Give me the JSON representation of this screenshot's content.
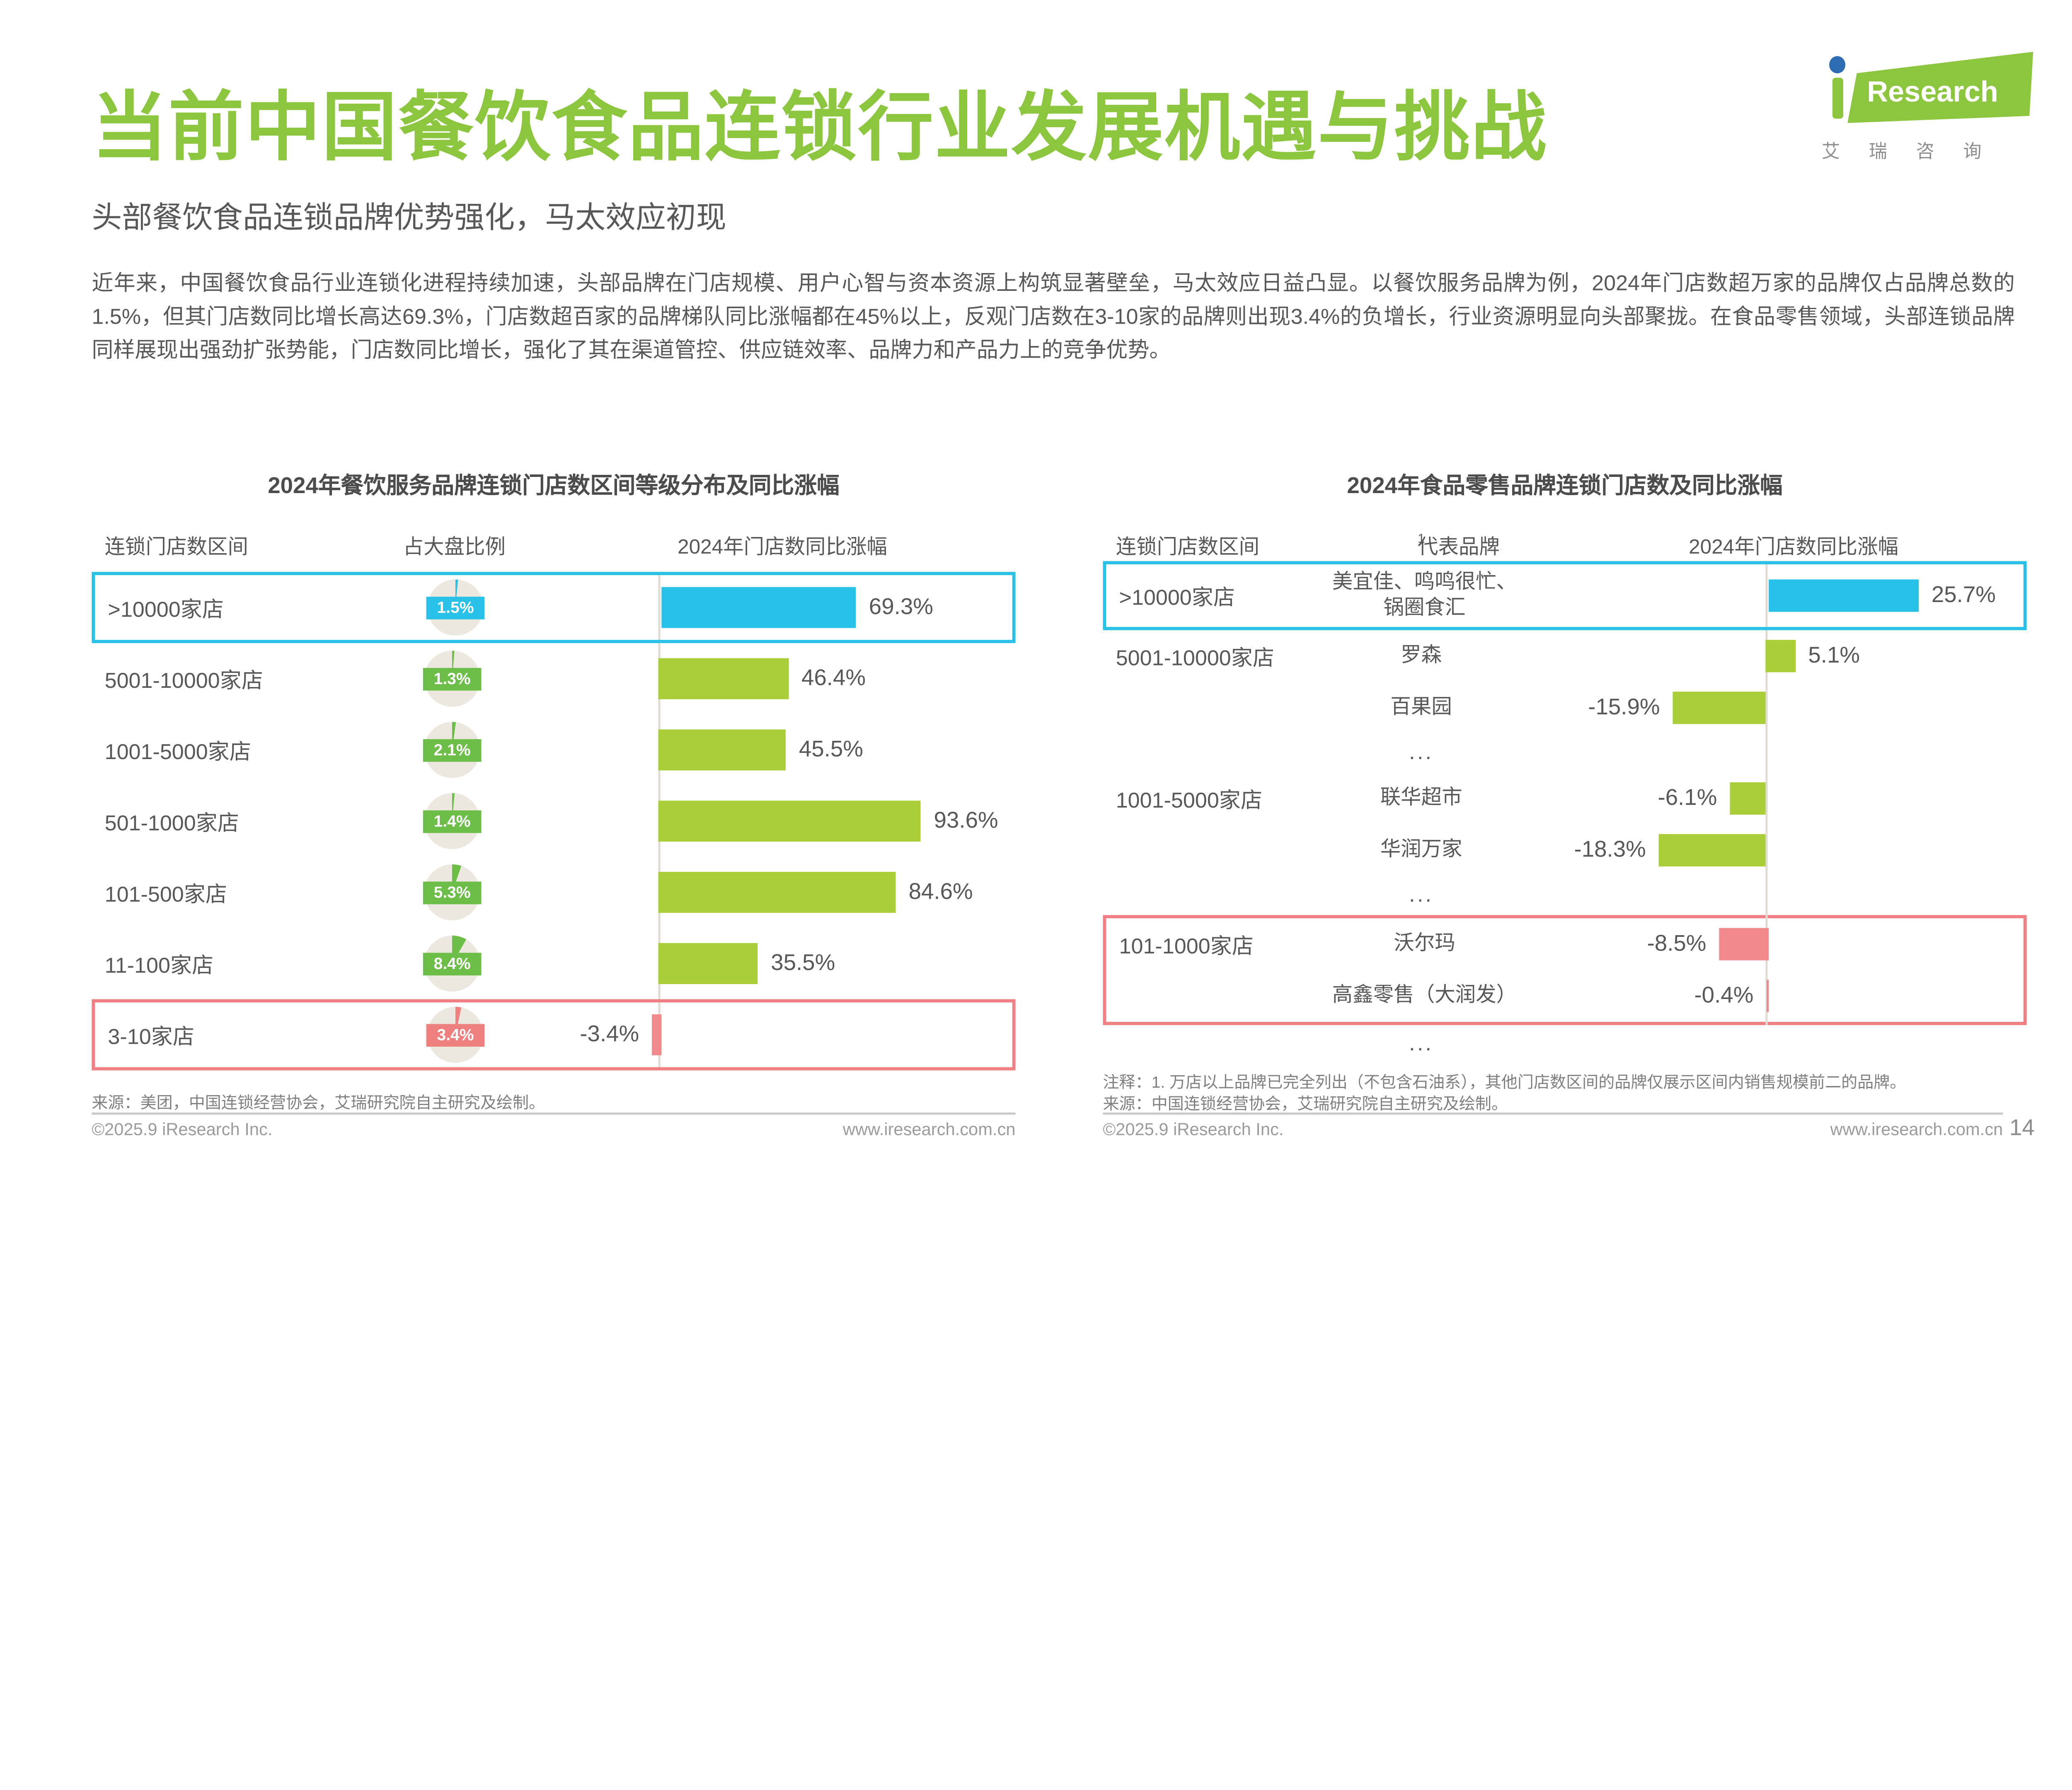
{
  "page": {
    "title": "当前中国餐饮食品连锁行业发展机遇与挑战",
    "subtitle": "头部餐饮食品连锁品牌优势强化，马太效应初现",
    "intro": "近年来，中国餐饮食品行业连锁化进程持续加速，头部品牌在门店规模、用户心智与资本资源上构筑显著壁垒，马太效应日益凸显。以餐饮服务品牌为例，2024年门店数超万家的品牌仅占品牌总数的1.5%，但其门店数同比增长高达69.3%，门店数超百家的品牌梯队同比涨幅都在45%以上，反观门店数在3-10家的品牌则出现3.4%的负增长，行业资源明显向头部聚拢。在食品零售领域，头部连锁品牌同样展现出强劲扩张势能，门店数同比增长，强化了其在渠道管控、供应链效率、品牌力和产品力上的竞争优势。",
    "page_number": "14"
  },
  "logo": {
    "brand_text": "Research",
    "brand_cn": "艾 瑞 咨 询"
  },
  "colors": {
    "title_green": "#8CC63E",
    "cyan": "#29C1E8",
    "bar_green": "#A9CE38",
    "pie_green": "#6CBE48",
    "pink_bar": "#F2898D",
    "red_chip": "#F0807F",
    "red_border": "#F08084",
    "pie_base": "#ECE8DF",
    "axis_line": "#E0DCD3",
    "text": "#595757",
    "muted": "#7F7F7F",
    "logo_blue": "#2E6DB4"
  },
  "left_chart": {
    "title": "2024年餐饮服务品牌连锁门店数区间等级分布及同比涨幅",
    "col_range": "连锁门店数区间",
    "col_share": "占大盘比例",
    "col_growth": "2024年门店数同比涨幅",
    "source": "来源：美团，中国连锁经营协会，艾瑞研究院自主研究及绘制。",
    "copyright": "©2025.9 iResearch Inc.",
    "site": "www.iresearch.com.cn",
    "rows": [
      {
        "range": ">10000家店",
        "share": "1.5%",
        "share_value": 1.5,
        "growth": "69.3%",
        "growth_value": 69.3,
        "color": "blue",
        "highlight": "blue"
      },
      {
        "range": "5001-10000家店",
        "share": "1.3%",
        "share_value": 1.3,
        "growth": "46.4%",
        "growth_value": 46.4,
        "color": "green"
      },
      {
        "range": "1001-5000家店",
        "share": "2.1%",
        "share_value": 2.1,
        "growth": "45.5%",
        "growth_value": 45.5,
        "color": "green"
      },
      {
        "range": "501-1000家店",
        "share": "1.4%",
        "share_value": 1.4,
        "growth": "93.6%",
        "growth_value": 93.6,
        "color": "green"
      },
      {
        "range": "101-500家店",
        "share": "5.3%",
        "share_value": 5.3,
        "growth": "84.6%",
        "growth_value": 84.6,
        "color": "green"
      },
      {
        "range": "11-100家店",
        "share": "8.4%",
        "share_value": 8.4,
        "growth": "35.5%",
        "growth_value": 35.5,
        "color": "green"
      },
      {
        "range": "3-10家店",
        "share": "3.4%",
        "share_value": 3.4,
        "growth": "-3.4%",
        "growth_value": -3.4,
        "color": "red",
        "highlight": "red"
      }
    ]
  },
  "right_chart": {
    "title": "2024年食品零售品牌连锁门店数及同比涨幅",
    "col_range": "连锁门店数区间",
    "col_brand": "代表品牌",
    "col_brand_sup": "1",
    "col_growth": "2024年门店数同比涨幅",
    "note": "注释：1. 万店以上品牌已完全列出（不包含石油系），其他门店数区间的品牌仅展示区间内销售规模前二的品牌。",
    "source": "来源：中国连锁经营协会，艾瑞研究院自主研究及绘制。",
    "copyright": "©2025.9 iResearch Inc.",
    "site": "www.iresearch.com.cn",
    "rows": [
      {
        "range": ">10000家店",
        "brand_lines": [
          "美宜佳、鸣鸣很忙、",
          "锅圈食汇"
        ],
        "growth": "25.7%",
        "growth_value": 25.7,
        "color": "blue",
        "tall": true,
        "highlight": "blue"
      },
      {
        "range": "5001-10000家店",
        "brand_lines": [
          "罗森"
        ],
        "growth": "5.1%",
        "growth_value": 5.1,
        "color": "green"
      },
      {
        "brand_lines": [
          "百果园"
        ],
        "growth": "-15.9%",
        "growth_value": -15.9,
        "color": "green"
      },
      {
        "dots": "..."
      },
      {
        "range": "1001-5000家店",
        "brand_lines": [
          "联华超市"
        ],
        "growth": "-6.1%",
        "growth_value": -6.1,
        "color": "green"
      },
      {
        "brand_lines": [
          "华润万家"
        ],
        "growth": "-18.3%",
        "growth_value": -18.3,
        "color": "green"
      },
      {
        "dots": "..."
      },
      {
        "range": "101-1000家店",
        "brand_lines": [
          "沃尔玛"
        ],
        "growth": "-8.5%",
        "growth_value": -8.5,
        "color": "red",
        "group": "red"
      },
      {
        "brand_lines": [
          "高鑫零售（大润发）"
        ],
        "growth": "-0.4%",
        "growth_value": -0.4,
        "color": "red",
        "group": "red"
      },
      {
        "dots": "..."
      }
    ]
  },
  "chart_data": [
    {
      "type": "bar",
      "orientation": "horizontal",
      "title": "2024年餐饮服务品牌连锁门店数区间等级分布及同比涨幅",
      "columns": [
        "连锁门店数区间",
        "占大盘比例",
        "2024年门店数同比涨幅"
      ],
      "categories": [
        ">10000家店",
        "5001-10000家店",
        "1001-5000家店",
        "501-1000家店",
        "101-500家店",
        "11-100家店",
        "3-10家店"
      ],
      "series": [
        {
          "name": "占大盘比例(%)",
          "values": [
            1.5,
            1.3,
            2.1,
            1.4,
            5.3,
            8.4,
            3.4
          ]
        },
        {
          "name": "2024年门店数同比涨幅(%)",
          "values": [
            69.3,
            46.4,
            45.5,
            93.6,
            84.6,
            35.5,
            -3.4
          ]
        }
      ],
      "highlighted_categories": {
        ">10000家店": "blue",
        "3-10家店": "red"
      },
      "xlim": [
        -10,
        100
      ],
      "grid": false,
      "legend": "none"
    },
    {
      "type": "bar",
      "orientation": "horizontal",
      "title": "2024年食品零售品牌连锁门店数及同比涨幅",
      "columns": [
        "连锁门店数区间",
        "代表品牌1",
        "2024年门店数同比涨幅"
      ],
      "categories": [
        "美宜佳、鸣鸣很忙、锅圈食汇",
        "罗森",
        "百果园",
        "联华超市",
        "华润万家",
        "沃尔玛",
        "高鑫零售（大润发）"
      ],
      "category_groups": [
        ">10000家店",
        "5001-10000家店",
        "5001-10000家店",
        "1001-5000家店",
        "1001-5000家店",
        "101-1000家店",
        "101-1000家店"
      ],
      "series": [
        {
          "name": "2024年门店数同比涨幅(%)",
          "values": [
            25.7,
            5.1,
            -15.9,
            -6.1,
            -18.3,
            -8.5,
            -0.4
          ]
        }
      ],
      "highlighted_categories": {
        "美宜佳、鸣鸣很忙、锅圈食汇": "blue",
        "沃尔玛": "red",
        "高鑫零售（大润发）": "red"
      },
      "xlim": [
        -25,
        30
      ],
      "grid": false,
      "legend": "none"
    }
  ]
}
